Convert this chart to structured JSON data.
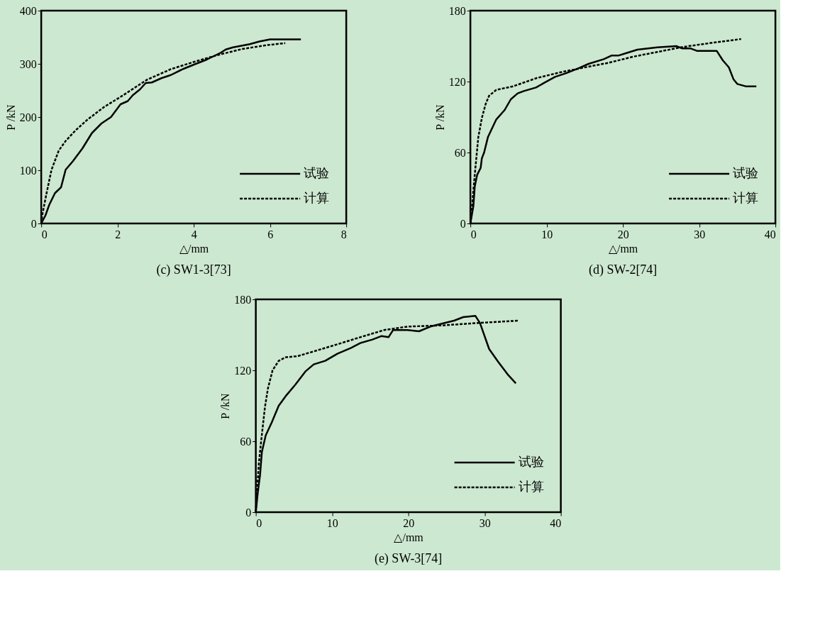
{
  "chart_data": [
    {
      "type": "line",
      "title": "(c) SW1-3[73]",
      "xlabel": "△/mm",
      "ylabel": "P /kN",
      "xlim": [
        0,
        8
      ],
      "xticks": [
        0,
        2,
        4,
        6,
        8
      ],
      "ylim": [
        0,
        400
      ],
      "yticks": [
        0,
        100,
        200,
        300,
        400
      ],
      "grid": false,
      "legend": "bottom right",
      "marker": "none",
      "series": [
        {
          "name": "试验",
          "color": "#000000",
          "line_style": "solid",
          "x": [
            0,
            0.11,
            0.21,
            0.36,
            0.52,
            0.64,
            0.83,
            1.08,
            1.33,
            1.58,
            1.83,
            2.08,
            2.27,
            2.4,
            2.59,
            2.74,
            2.9,
            3.15,
            3.4,
            3.71,
            4.02,
            4.34,
            4.71,
            4.84,
            5.03,
            5.47,
            5.72,
            6.0,
            6.81
          ],
          "values": [
            0,
            15,
            35,
            57,
            68,
            101,
            117,
            141,
            170,
            188,
            200,
            224,
            230,
            241,
            252,
            264,
            265,
            273,
            279,
            290,
            299,
            308,
            321,
            327,
            331,
            337,
            342,
            346,
            346
          ]
        },
        {
          "name": "计算",
          "color": "#000000",
          "line_style": "dashed",
          "x": [
            0,
            0.03,
            0.14,
            0.27,
            0.46,
            0.64,
            0.9,
            1.21,
            1.65,
            2.15,
            2.77,
            3.4,
            4.02,
            4.65,
            5.28,
            5.9,
            6.4
          ],
          "values": [
            0,
            17,
            57,
            101,
            137,
            155,
            175,
            195,
            219,
            241,
            270,
            290,
            304,
            317,
            328,
            335,
            339
          ]
        }
      ]
    },
    {
      "type": "line",
      "title": "(d) SW-2[74]",
      "xlabel": "△/mm",
      "ylabel": "P /kN",
      "xlim": [
        0,
        40
      ],
      "xticks": [
        0,
        10,
        20,
        30,
        40
      ],
      "ylim": [
        0,
        180
      ],
      "yticks": [
        0,
        60,
        120,
        180
      ],
      "grid": false,
      "legend": "bottom right",
      "marker": "none",
      "series": [
        {
          "name": "试验",
          "color": "#000000",
          "line_style": "solid",
          "x": [
            0,
            0.4,
            0.57,
            0.88,
            1.35,
            1.5,
            1.8,
            2.3,
            3.4,
            4.5,
            5.3,
            6.2,
            7.0,
            8.6,
            9.7,
            11.1,
            12.5,
            14.1,
            15.5,
            17.5,
            18.5,
            19.4,
            20.4,
            21.9,
            24.5,
            27.0,
            27.8,
            28.9,
            29.7,
            32.3,
            33.1,
            33.9,
            34.5,
            35.0,
            36.1,
            37.5
          ],
          "values": [
            0,
            15,
            31,
            41,
            47,
            55,
            60,
            73,
            88,
            96,
            105,
            110,
            112,
            115,
            119,
            124,
            127,
            131,
            135,
            139,
            142,
            142,
            144,
            147,
            149,
            150,
            148,
            148,
            146,
            146,
            138,
            132,
            122,
            118,
            116,
            116
          ]
        },
        {
          "name": "计算",
          "color": "#000000",
          "line_style": "dashed",
          "x": [
            0,
            0.1,
            0.57,
            1.04,
            1.5,
            2.0,
            2.45,
            3.4,
            5.6,
            8.7,
            11.9,
            15.0,
            18.2,
            21.3,
            24.5,
            27.6,
            30.8,
            35.5
          ],
          "values": [
            0,
            6,
            41,
            73,
            89,
            101,
            108,
            113,
            116,
            123,
            128,
            132,
            136,
            141,
            145,
            149,
            152,
            156
          ]
        }
      ]
    },
    {
      "type": "line",
      "title": "(e) SW-3[74]",
      "xlabel": "△/mm",
      "ylabel": "P /kN",
      "xlim": [
        0,
        40
      ],
      "xticks": [
        0,
        10,
        20,
        30,
        40
      ],
      "ylim": [
        0,
        180
      ],
      "yticks": [
        0,
        60,
        120,
        180
      ],
      "grid": false,
      "legend": "bottom right",
      "marker": "none",
      "series": [
        {
          "name": "试验",
          "color": "#000000",
          "line_style": "solid",
          "x": [
            0,
            0.25,
            0.55,
            0.8,
            1.3,
            2.1,
            3.0,
            3.9,
            5.2,
            6.5,
            7.6,
            9.1,
            10.7,
            12.5,
            13.7,
            15.3,
            16.5,
            17.4,
            18.0,
            19.9,
            21.4,
            22.9,
            26.0,
            27.2,
            28.8,
            29.4,
            30.6,
            31.8,
            33.1,
            34.1
          ],
          "values": [
            0,
            16,
            31,
            51,
            65,
            76,
            90,
            98,
            108,
            119,
            125,
            128,
            134,
            139,
            143,
            146,
            149,
            148,
            154,
            154,
            153,
            157,
            162,
            165,
            166,
            160,
            138,
            127,
            116,
            109
          ]
        },
        {
          "name": "计算",
          "color": "#000000",
          "line_style": "dashed",
          "x": [
            0,
            0.1,
            0.4,
            0.7,
            1.2,
            1.6,
            2.2,
            3.0,
            3.9,
            5.5,
            7.6,
            10.7,
            13.7,
            16.8,
            19.9,
            24.5,
            29.1,
            34.4
          ],
          "values": [
            0,
            12,
            41,
            60,
            89,
            105,
            120,
            128,
            131,
            132,
            136,
            142,
            148,
            154,
            157,
            158,
            160,
            162
          ]
        }
      ]
    }
  ]
}
